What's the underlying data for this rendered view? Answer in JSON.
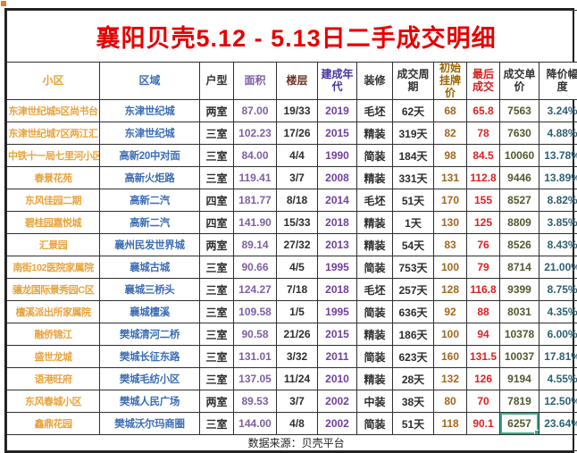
{
  "title": "襄阳贝壳5.12 - 5.13日二手成交明细",
  "title_color": "#E60000",
  "footer": {
    "source_label": "数据来源：贝壳平台",
    "color": "#222222"
  },
  "selected_cell": {
    "row_index": 14,
    "column_index": 10,
    "border_color": "#2BB387"
  },
  "table": {
    "columns": [
      {
        "key": "community",
        "label": "小区",
        "color": "#E8A33D"
      },
      {
        "key": "district",
        "label": "区域",
        "color": "#3D6EB4"
      },
      {
        "key": "layout",
        "label": "户型",
        "color": "#333333"
      },
      {
        "key": "area",
        "label": "面积",
        "color": "#7E5FA4"
      },
      {
        "key": "floor",
        "label": "楼层",
        "color": "#6B3226"
      },
      {
        "key": "year-built",
        "label": "建成年代",
        "color": "#4633A0"
      },
      {
        "key": "decoration",
        "label": "装修",
        "color": "#333333"
      },
      {
        "key": "deal-cycle",
        "label": "成交周期",
        "color": "#333333"
      },
      {
        "key": "initial-price",
        "label": "初始挂牌价",
        "color": "#9C6500"
      },
      {
        "key": "final-price",
        "label": "最后成交",
        "color": "#D42020"
      },
      {
        "key": "unit-price",
        "label": "成交单价",
        "color": "#333333"
      },
      {
        "key": "discount",
        "label": "降价幅度",
        "color": "#333333"
      }
    ],
    "cell_colors": [
      "#E8A33D",
      "#3D6EB4",
      "#2D2D2D",
      "#7E5FA4",
      "#2D2D2D",
      "#7040A0",
      "#2D2D2D",
      "#2D2D2D",
      "#A3661E",
      "#E02020",
      "#4F5A2E",
      "#2E6073"
    ],
    "rows": [
      [
        "东津世纪城5区尚书台",
        "东津世纪城",
        "两室",
        "87.00",
        "19/33",
        "2019",
        "毛坯",
        "62天",
        "68",
        "65.8",
        "7563",
        "3.24%"
      ],
      [
        "东津世纪城7区两江汇",
        "东津世纪城",
        "三室",
        "102.23",
        "17/26",
        "2015",
        "精装",
        "319天",
        "82",
        "78",
        "7630",
        "4.88%"
      ],
      [
        "中铁十一局七里河小区",
        "高新20中对面",
        "三室",
        "84.00",
        "4/4",
        "1990",
        "简装",
        "184天",
        "98",
        "84.5",
        "10060",
        "13.78%"
      ],
      [
        "春景花苑",
        "高新火炬路",
        "三室",
        "119.41",
        "3/7",
        "2008",
        "精装",
        "331天",
        "131",
        "112.8",
        "9446",
        "13.89%"
      ],
      [
        "东风佳园二期",
        "高新二汽",
        "四室",
        "181.77",
        "8/18",
        "2014",
        "毛坯",
        "51天",
        "170",
        "155",
        "8527",
        "8.82%"
      ],
      [
        "碧桂园嘉悦城",
        "高新二汽",
        "四室",
        "141.90",
        "15/33",
        "2018",
        "精装",
        "1天",
        "130",
        "125",
        "8809",
        "3.85%"
      ],
      [
        "汇景园",
        "襄州民发世界城",
        "两室",
        "89.14",
        "27/32",
        "2013",
        "精装",
        "54天",
        "83",
        "76",
        "8526",
        "8.43%"
      ],
      [
        "南街102医院家属院",
        "襄城古城",
        "三室",
        "90.66",
        "4/5",
        "1995",
        "简装",
        "753天",
        "100",
        "79",
        "8714",
        "21.00%"
      ],
      [
        "骧龙国际景秀园C区",
        "襄城三桥头",
        "三室",
        "124.27",
        "7/18",
        "2018",
        "毛坯",
        "257天",
        "128",
        "116.8",
        "9399",
        "8.75%"
      ],
      [
        "檀溪派出所家属院",
        "襄城檀溪",
        "三室",
        "109.58",
        "1/5",
        "1995",
        "简装",
        "636天",
        "92",
        "88",
        "8031",
        "4.35%"
      ],
      [
        "融侨锦江",
        "樊城清河二桥",
        "三室",
        "90.58",
        "21/26",
        "2015",
        "精装",
        "186天",
        "100",
        "94",
        "10378",
        "6.00%"
      ],
      [
        "盛世龙城",
        "樊城长征东路",
        "三室",
        "131.01",
        "3/32",
        "2011",
        "简装",
        "623天",
        "160",
        "131.5",
        "10037",
        "17.81%"
      ],
      [
        "语港旺府",
        "樊城毛纺小区",
        "三室",
        "137.05",
        "11/24",
        "2010",
        "精装",
        "28天",
        "132",
        "126",
        "9194",
        "4.55%"
      ],
      [
        "东风春城小区",
        "樊城人民广场",
        "两室",
        "89.53",
        "3/7",
        "2002",
        "中装",
        "38天",
        "80",
        "70",
        "7819",
        "12.50%"
      ],
      [
        "鑫鼎花园",
        "樊城沃尔玛商圈",
        "三室",
        "144.00",
        "4/8",
        "2002",
        "简装",
        "51天",
        "118",
        "90.1",
        "6257",
        "23.64%"
      ]
    ]
  }
}
